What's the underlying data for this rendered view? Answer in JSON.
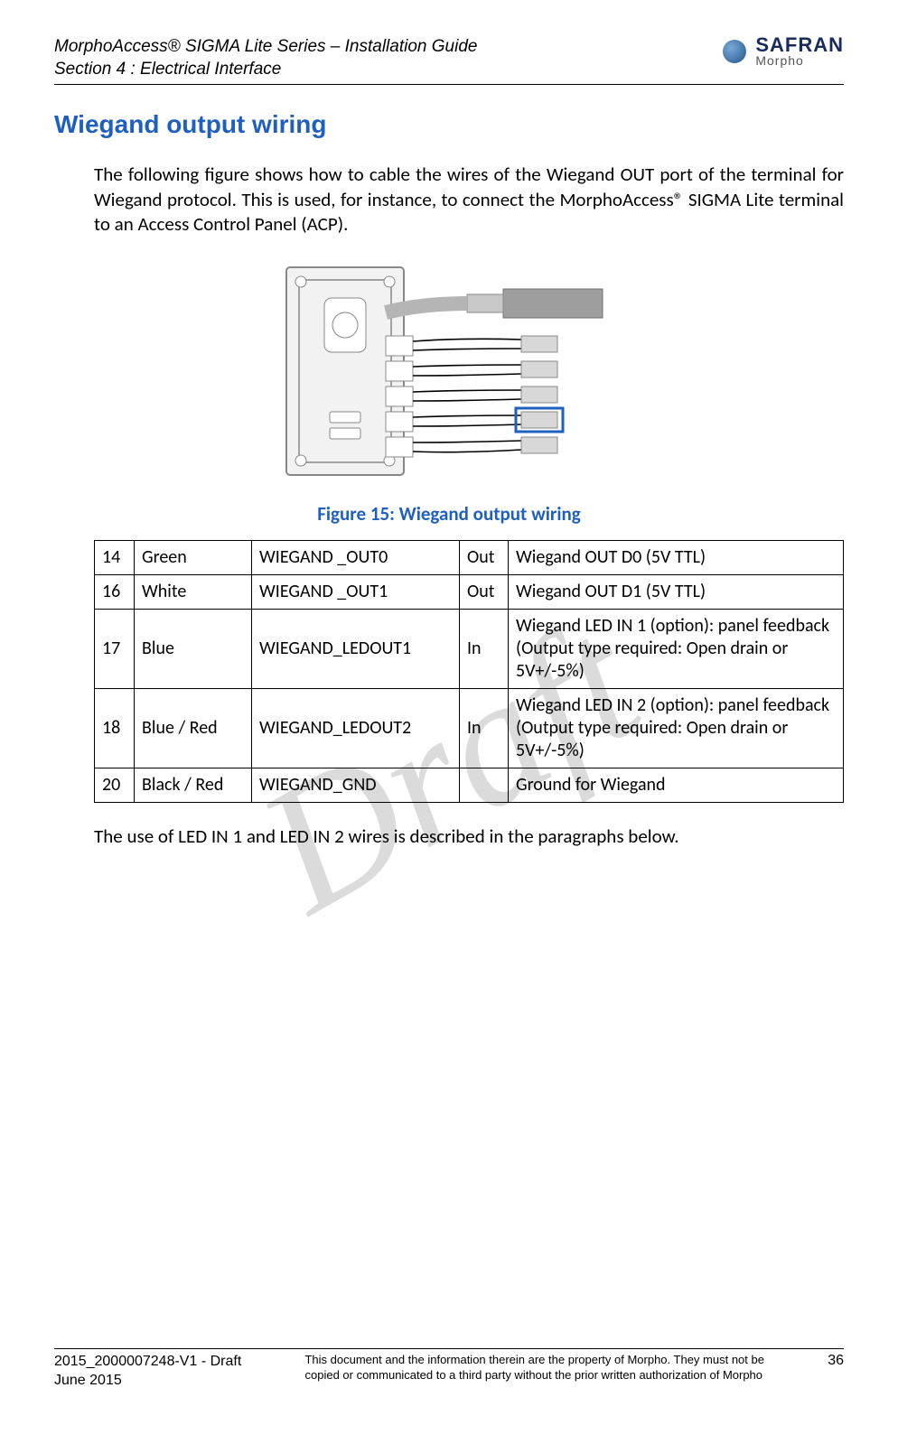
{
  "header": {
    "line1": "MorphoAccess® SIGMA Lite Series – Installation Guide",
    "line2": "Section 4 : Electrical Interface",
    "logo": {
      "brand": "SAFRAN",
      "sub": "Morpho"
    }
  },
  "section_title": "Wiegand output wiring",
  "intro_paragraph": "The following figure shows how to cable the wires of the Wiegand OUT port of the terminal for Wiegand protocol. This is used, for instance, to connect the MorphoAccess® SIGMA Lite terminal to an Access Control Panel (ACP).",
  "figure": {
    "caption": "Figure 15: Wiegand output wiring",
    "colors": {
      "plate": "#f2f2f2",
      "plate_stroke": "#888",
      "wire_bundle": "#b5b5b5",
      "connector_fill": "#d8d8d8",
      "connector_stroke": "#8a8a8a",
      "highlight_stroke": "#1f5fbf",
      "wire_black": "#000000"
    },
    "highlight_port_index": 3
  },
  "table": {
    "rows": [
      {
        "pin": "14",
        "color": "Green",
        "signal": "WIEGAND _OUT0",
        "dir": "Out",
        "desc": "Wiegand OUT D0 (5V TTL)"
      },
      {
        "pin": "16",
        "color": "White",
        "signal": "WIEGAND _OUT1",
        "dir": "Out",
        "desc": "Wiegand OUT D1 (5V TTL)"
      },
      {
        "pin": "17",
        "color": "Blue",
        "signal": "WIEGAND_LEDOUT1",
        "dir": "In",
        "desc": "Wiegand LED IN 1 (option): panel feedback\n(Output type required: Open drain or 5V+/-5%)"
      },
      {
        "pin": "18",
        "color": "Blue / Red",
        "signal": "WIEGAND_LEDOUT2",
        "dir": "In",
        "desc": "Wiegand LED IN 2 (option): panel feedback\n(Output type required: Open drain or 5V+/-5%)"
      },
      {
        "pin": "20",
        "color": "Black / Red",
        "signal": "WIEGAND_GND",
        "dir": "",
        "desc": "Ground for Wiegand"
      }
    ]
  },
  "closing_paragraph": "The use of LED IN 1 and LED IN 2 wires is described in the paragraphs below.",
  "watermark": "Draft",
  "footer": {
    "left_line1": "2015_2000007248-V1 - Draft",
    "left_line2": "June 2015",
    "mid_line1": "This document and the information therein are the property of Morpho. They must not be",
    "mid_line2": "copied or communicated to a third party without the prior written authorization of Morpho",
    "page_number": "36"
  }
}
